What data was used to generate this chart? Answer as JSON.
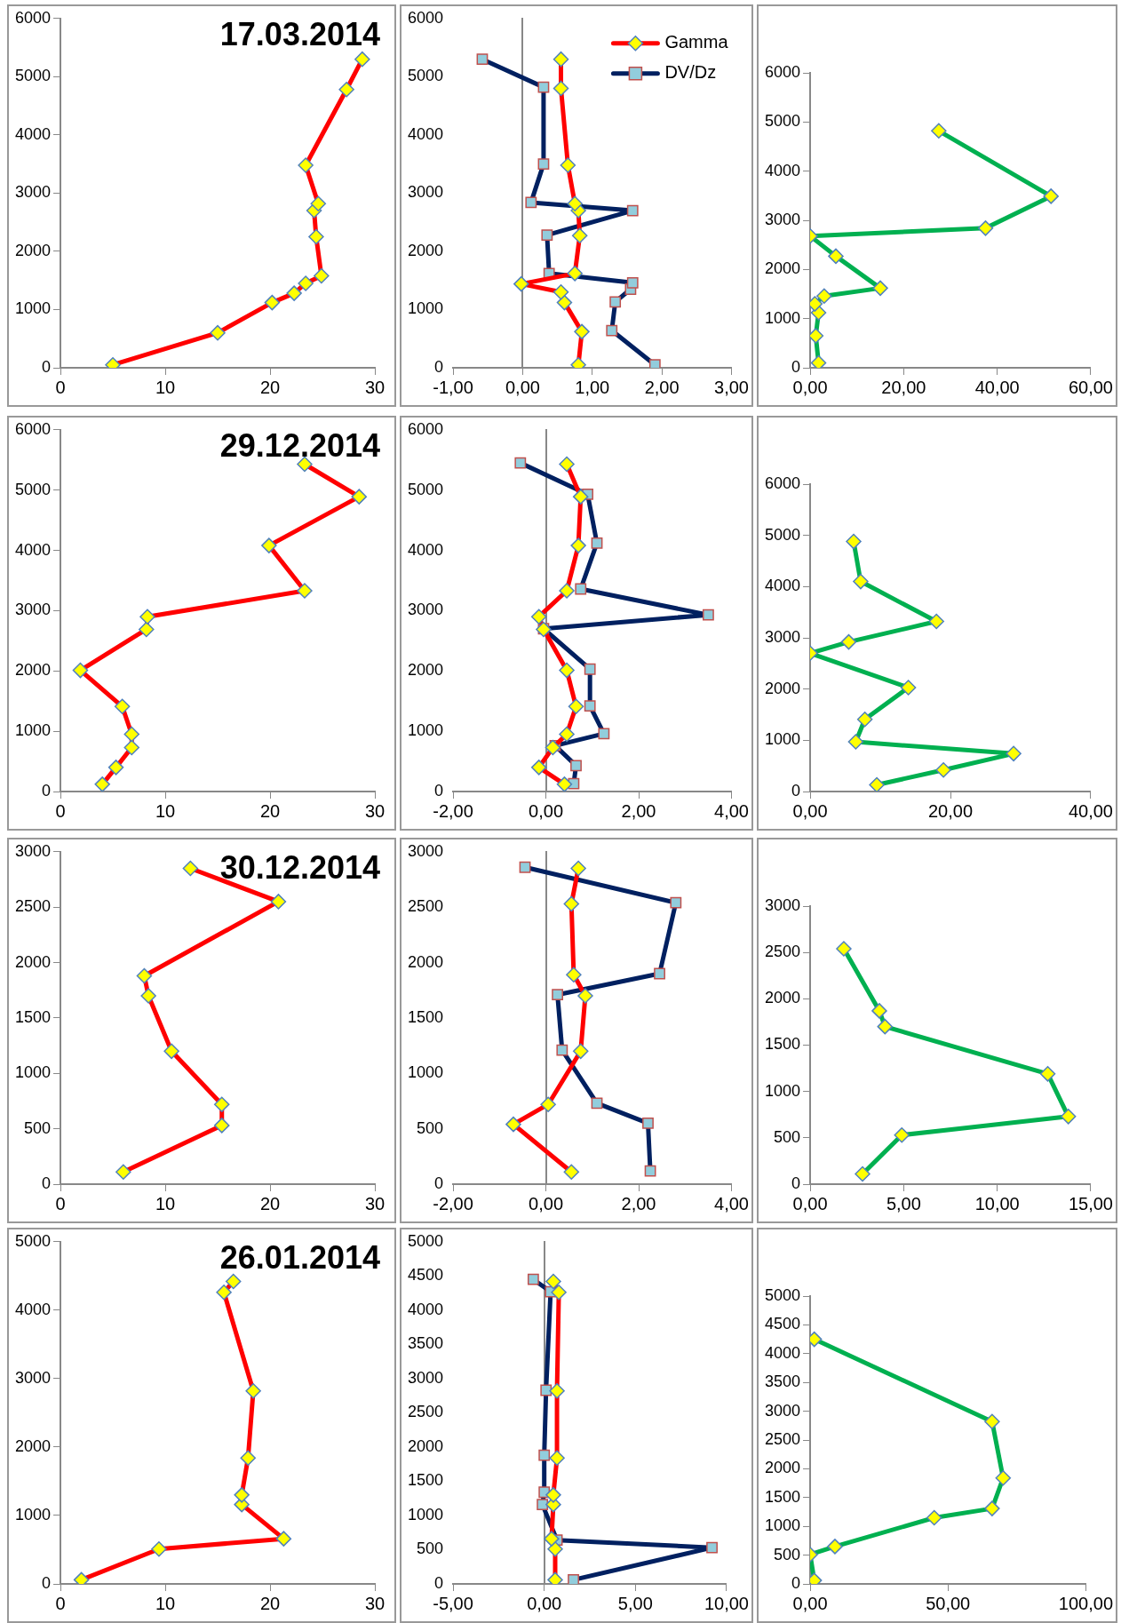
{
  "chart_data": [
    {
      "type": "line",
      "title": "17.03.2014",
      "xlim": [
        0,
        30
      ],
      "xticks": [
        0,
        10,
        20,
        30
      ],
      "ylim": [
        0,
        6000
      ],
      "yticks": [
        0,
        1000,
        2000,
        3000,
        4000,
        5000,
        6000
      ],
      "series": [
        {
          "color": "#ff0000",
          "marker": "diamond",
          "x": [
            5,
            15,
            20.2,
            22.3,
            23.4,
            24.9,
            24.4,
            24.2,
            24.6,
            23.4,
            27.3,
            28.8
          ],
          "values": [
            50,
            600,
            1120,
            1280,
            1450,
            1580,
            2250,
            2700,
            2820,
            3480,
            4780,
            5300
          ]
        }
      ]
    },
    {
      "type": "line",
      "legend": "top right",
      "xlim": [
        -1,
        3
      ],
      "xticks": [
        {
          "value": -1,
          "label": "-1,00"
        },
        {
          "value": 0,
          "label": "0,00"
        },
        {
          "value": 1,
          "label": "1,00"
        },
        {
          "value": 2,
          "label": "2,00"
        },
        {
          "value": 3,
          "label": "3,00"
        }
      ],
      "ylim": [
        0,
        6000
      ],
      "yticks": [
        0,
        1000,
        2000,
        3000,
        4000,
        5000,
        6000
      ],
      "series": [
        {
          "name": "Gamma",
          "color": "#ff0000",
          "marker": "diamond",
          "x": [
            0.8,
            0.85,
            0.6,
            0.55,
            -0.02,
            0.75,
            0.82,
            0.8,
            0.75,
            0.65,
            0.55,
            0.55
          ],
          "values": [
            50,
            620,
            1120,
            1300,
            1440,
            1620,
            2270,
            2700,
            2820,
            3480,
            4800,
            5300
          ]
        },
        {
          "name": "DV/Dz",
          "color": "#002060",
          "marker": "square",
          "x": [
            1.9,
            1.28,
            1.33,
            1.55,
            1.58,
            0.38,
            0.35,
            1.58,
            0.12,
            0.3,
            0.3,
            -0.58
          ],
          "values": [
            50,
            640,
            1130,
            1350,
            1460,
            1620,
            2280,
            2700,
            2840,
            3500,
            4820,
            5300
          ]
        }
      ]
    },
    {
      "type": "line",
      "xlim": [
        0,
        60
      ],
      "xticks": [
        {
          "value": 0,
          "label": "0,00"
        },
        {
          "value": 20,
          "label": "20,00"
        },
        {
          "value": 40,
          "label": "40,00"
        },
        {
          "value": 60,
          "label": "60,00"
        }
      ],
      "ylim": [
        0,
        6000
      ],
      "yticks": [
        0,
        1000,
        2000,
        3000,
        4000,
        5000,
        6000
      ],
      "series": [
        {
          "color": "#00b050",
          "marker": "diamond",
          "x": [
            1.8,
            1.2,
            1.8,
            1,
            3,
            15,
            5.5,
            0,
            37.5,
            51.5,
            27.5
          ],
          "values": [
            100,
            650,
            1120,
            1300,
            1460,
            1620,
            2270,
            2680,
            2840,
            3490,
            4820
          ]
        }
      ]
    },
    {
      "type": "line",
      "title": "29.12.2014",
      "xlim": [
        0,
        30
      ],
      "xticks": [
        0,
        10,
        20,
        30
      ],
      "ylim": [
        0,
        6000
      ],
      "yticks": [
        0,
        1000,
        2000,
        3000,
        4000,
        5000,
        6000
      ],
      "series": [
        {
          "color": "#ff0000",
          "marker": "diamond",
          "x": [
            4,
            5.3,
            6.8,
            6.8,
            5.9,
            1.9,
            8.2,
            8.3,
            23.3,
            19.9,
            28.5,
            23.3
          ],
          "values": [
            120,
            400,
            730,
            950,
            1410,
            2010,
            2690,
            2900,
            3330,
            4080,
            4890,
            5430
          ]
        }
      ]
    },
    {
      "type": "line",
      "xlim": [
        -2,
        4
      ],
      "xticks": [
        {
          "value": -2,
          "label": "-2,00"
        },
        {
          "value": 0,
          "label": "0,00"
        },
        {
          "value": 2,
          "label": "2,00"
        },
        {
          "value": 4,
          "label": "4,00"
        }
      ],
      "ylim": [
        0,
        6000
      ],
      "yticks": [
        0,
        1000,
        2000,
        3000,
        4000,
        5000,
        6000
      ],
      "series": [
        {
          "color": "#ff0000",
          "marker": "diamond",
          "x": [
            0.4,
            -0.15,
            0.15,
            0.45,
            0.65,
            0.45,
            -0.05,
            -0.15,
            0.45,
            0.7,
            0.75,
            0.45
          ],
          "values": [
            120,
            400,
            730,
            950,
            1410,
            2010,
            2690,
            2900,
            3330,
            4080,
            4890,
            5430
          ]
        },
        {
          "color": "#002060",
          "marker": "square",
          "x": [
            0.6,
            0.65,
            0.2,
            1.25,
            0.95,
            0.95,
            -0.05,
            3.5,
            0.75,
            1.1,
            0.9,
            -0.55
          ],
          "values": [
            130,
            430,
            760,
            960,
            1420,
            2030,
            2700,
            2930,
            3360,
            4120,
            4930,
            5450
          ]
        }
      ]
    },
    {
      "type": "line",
      "xlim": [
        0,
        40
      ],
      "xticks": [
        {
          "value": 0,
          "label": "0,00"
        },
        {
          "value": 20,
          "label": "20,00"
        },
        {
          "value": 40,
          "label": "40,00"
        }
      ],
      "ylim": [
        0,
        6000
      ],
      "yticks": [
        0,
        1000,
        2000,
        3000,
        4000,
        5000,
        6000
      ],
      "series": [
        {
          "color": "#00b050",
          "marker": "diamond",
          "x": [
            9.5,
            19,
            29,
            6.5,
            7.8,
            14,
            0,
            5.5,
            18,
            7.2,
            6.2
          ],
          "values": [
            130,
            420,
            740,
            970,
            1410,
            2030,
            2700,
            2920,
            3320,
            4100,
            4880
          ]
        }
      ]
    },
    {
      "type": "line",
      "title": "30.12.2014",
      "xlim": [
        0,
        30
      ],
      "xticks": [
        0,
        10,
        20,
        30
      ],
      "ylim": [
        0,
        3000
      ],
      "yticks": [
        0,
        500,
        1000,
        1500,
        2000,
        2500,
        3000
      ],
      "series": [
        {
          "color": "#ff0000",
          "marker": "diamond",
          "x": [
            6,
            15.4,
            15.4,
            10.6,
            8.4,
            8,
            20.8,
            12.4
          ],
          "values": [
            110,
            530,
            720,
            1200,
            1700,
            1880,
            2550,
            2850
          ]
        }
      ]
    },
    {
      "type": "line",
      "xlim": [
        -2,
        4
      ],
      "xticks": [
        {
          "value": -2,
          "label": "-2,00"
        },
        {
          "value": 0,
          "label": "0,00"
        },
        {
          "value": 2,
          "label": "2,00"
        },
        {
          "value": 4,
          "label": "4,00"
        }
      ],
      "ylim": [
        0,
        3000
      ],
      "yticks": [
        0,
        500,
        1000,
        1500,
        2000,
        2500,
        3000
      ],
      "series": [
        {
          "color": "#ff0000",
          "marker": "diamond",
          "x": [
            0.55,
            -0.7,
            0.05,
            0.75,
            0.85,
            0.6,
            0.55,
            0.7
          ],
          "values": [
            110,
            540,
            720,
            1200,
            1700,
            1890,
            2530,
            2850
          ]
        },
        {
          "color": "#002060",
          "marker": "square",
          "x": [
            2.25,
            2.2,
            1.1,
            0.35,
            0.25,
            2.45,
            2.8,
            -0.45
          ],
          "values": [
            120,
            550,
            730,
            1210,
            1710,
            1900,
            2540,
            2860
          ]
        }
      ]
    },
    {
      "type": "line",
      "xlim": [
        0,
        15
      ],
      "xticks": [
        {
          "value": 0,
          "label": "0,00"
        },
        {
          "value": 5,
          "label": "5,00"
        },
        {
          "value": 10,
          "label": "10,00"
        },
        {
          "value": 15,
          "label": "15,00"
        }
      ],
      "ylim": [
        0,
        3000
      ],
      "yticks": [
        0,
        500,
        1000,
        1500,
        2000,
        2500,
        3000
      ],
      "series": [
        {
          "color": "#00b050",
          "marker": "diamond",
          "x": [
            2.8,
            4.9,
            13.8,
            12.7,
            4,
            3.7,
            1.8
          ],
          "values": [
            110,
            530,
            730,
            1190,
            1700,
            1870,
            2540
          ]
        }
      ]
    },
    {
      "type": "line",
      "title": "26.01.2014",
      "xlim": [
        0,
        30
      ],
      "xticks": [
        0,
        10,
        20,
        30
      ],
      "ylim": [
        0,
        5000
      ],
      "yticks": [
        0,
        1000,
        2000,
        3000,
        4000,
        5000
      ],
      "series": [
        {
          "color": "#ff0000",
          "marker": "diamond",
          "x": [
            2,
            9.4,
            21.3,
            17.3,
            17.3,
            17.9,
            18.4,
            15.6,
            16.5
          ],
          "values": [
            60,
            510,
            660,
            1160,
            1300,
            1840,
            2820,
            4260,
            4420
          ]
        }
      ]
    },
    {
      "type": "line",
      "xlim": [
        -5,
        10
      ],
      "xticks": [
        {
          "value": -5,
          "label": "-5,00"
        },
        {
          "value": 0,
          "label": "0,00"
        },
        {
          "value": 5,
          "label": "5,00"
        },
        {
          "value": 10,
          "label": "10,00"
        }
      ],
      "ylim": [
        0,
        5000
      ],
      "yticks": [
        0,
        500,
        1000,
        1500,
        2000,
        2500,
        3000,
        3500,
        4000,
        4500,
        5000
      ],
      "series": [
        {
          "color": "#ff0000",
          "marker": "diamond",
          "x": [
            0.6,
            0.6,
            0.4,
            0.5,
            0.5,
            0.7,
            0.7,
            0.8,
            0.5
          ],
          "values": [
            60,
            510,
            660,
            1160,
            1300,
            1840,
            2820,
            4260,
            4420
          ]
        },
        {
          "color": "#002060",
          "marker": "square",
          "x": [
            1.6,
            9.2,
            0.7,
            -0.1,
            0,
            0,
            0.1,
            0.35,
            -0.6
          ],
          "values": [
            60,
            530,
            640,
            1160,
            1340,
            1880,
            2830,
            4270,
            4450
          ]
        }
      ]
    },
    {
      "type": "line",
      "xlim": [
        0,
        100
      ],
      "xticks": [
        {
          "value": 0,
          "label": "0,00"
        },
        {
          "value": 50,
          "label": "50,00"
        },
        {
          "value": 100,
          "label": "100,00"
        }
      ],
      "ylim": [
        0,
        5000
      ],
      "yticks": [
        0,
        500,
        1000,
        1500,
        2000,
        2500,
        3000,
        3500,
        4000,
        4500,
        5000
      ],
      "series": [
        {
          "color": "#00b050",
          "marker": "diamond",
          "x": [
            1.5,
            0,
            9,
            45,
            66,
            70,
            66,
            1.5
          ],
          "values": [
            60,
            510,
            650,
            1150,
            1310,
            1840,
            2820,
            4250
          ]
        }
      ]
    }
  ]
}
